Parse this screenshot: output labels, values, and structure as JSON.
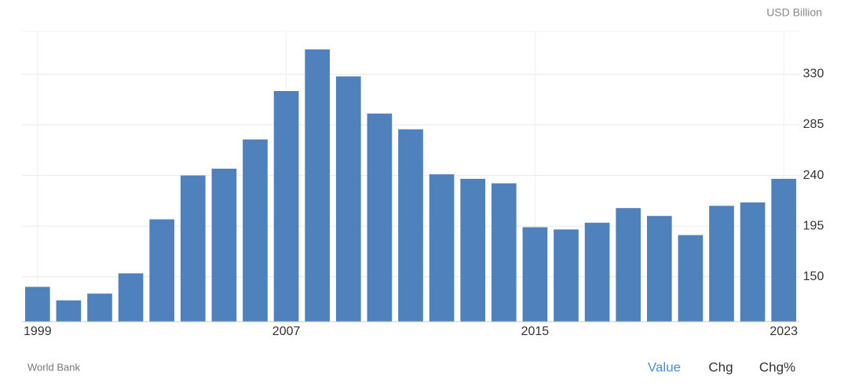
{
  "chart_data": {
    "type": "bar",
    "unit_label": "USD Billion",
    "categories": [
      "1999",
      null,
      null,
      null,
      null,
      null,
      null,
      null,
      "2007",
      null,
      null,
      null,
      null,
      null,
      null,
      null,
      "2015",
      null,
      null,
      null,
      null,
      null,
      null,
      null,
      "2023"
    ],
    "values": [
      141,
      129,
      135,
      153,
      201,
      240,
      246,
      272,
      315,
      352,
      328,
      295,
      281,
      241,
      237,
      233,
      194,
      192,
      198,
      211,
      204,
      187,
      213,
      216,
      237
    ],
    "color": "#4f81bd",
    "ylim": [
      110,
      368
    ],
    "yticks": [
      150,
      195,
      240,
      285,
      330
    ],
    "grid": true
  },
  "source": "World Bank",
  "tabs": [
    "Value",
    "Chg",
    "Chg%"
  ]
}
